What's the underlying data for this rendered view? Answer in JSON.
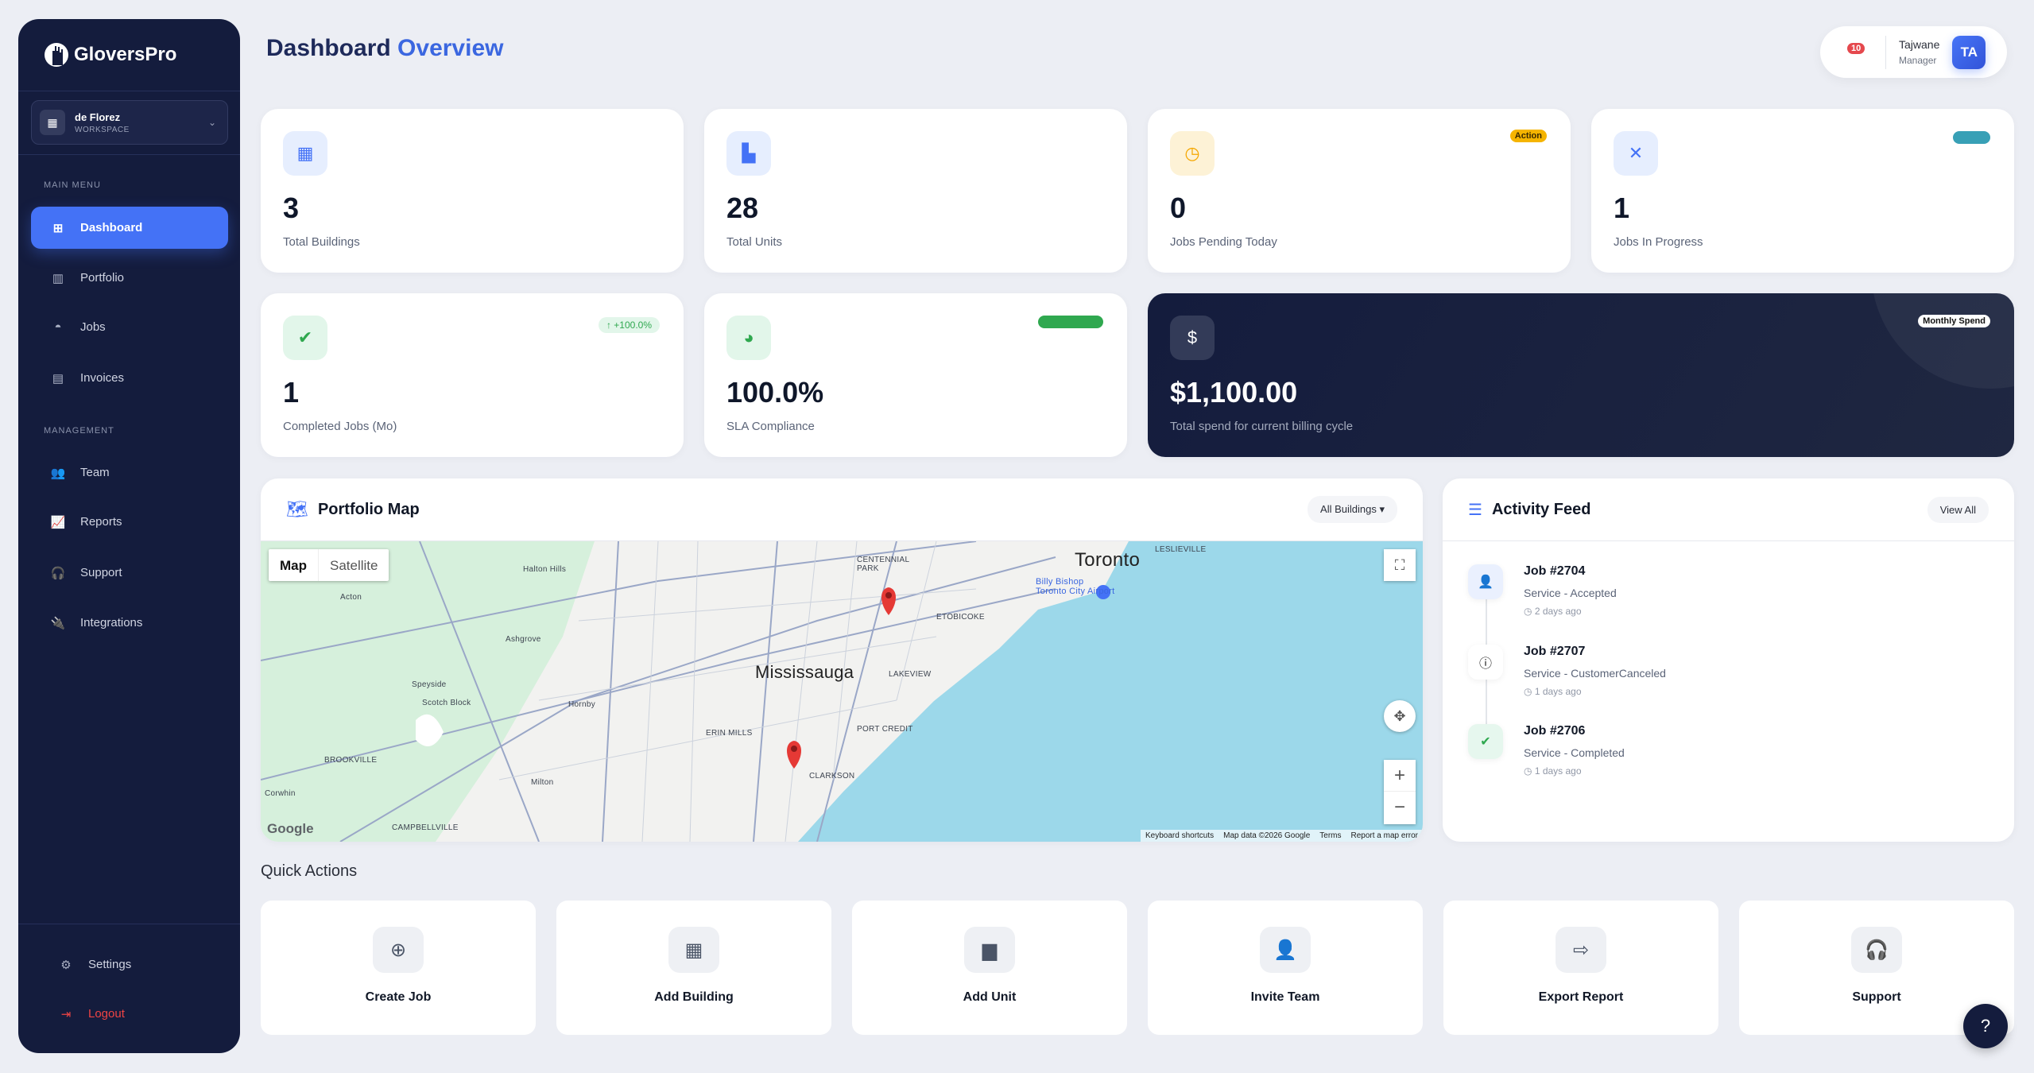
{
  "brand": {
    "name": "GloversPro"
  },
  "workspace": {
    "name": "de Florez",
    "label": "WORKSPACE"
  },
  "sidebar": {
    "main_menu_label": "MAIN MENU",
    "main_items": [
      {
        "label": "Dashboard",
        "icon": "grid-icon",
        "active": true
      },
      {
        "label": "Portfolio",
        "icon": "building-icon"
      },
      {
        "label": "Jobs",
        "icon": "hard-hat-icon"
      },
      {
        "label": "Invoices",
        "icon": "invoice-icon"
      }
    ],
    "management_label": "MANAGEMENT",
    "management_items": [
      {
        "label": "Team",
        "icon": "users-icon"
      },
      {
        "label": "Reports",
        "icon": "chart-line-icon"
      },
      {
        "label": "Support",
        "icon": "headset-icon"
      },
      {
        "label": "Integrations",
        "icon": "plug-icon"
      }
    ],
    "settings": "Settings",
    "logout": "Logout"
  },
  "header": {
    "title_part1": "Dashboard",
    "title_part2": "Overview",
    "notifications": "10",
    "user_name": "Tajwane",
    "user_role": "Manager",
    "avatar_initials": "TA"
  },
  "stats": [
    {
      "value": "3",
      "label": "Total Buildings",
      "icon": "building-icon"
    },
    {
      "value": "28",
      "label": "Total Units",
      "icon": "door-icon"
    },
    {
      "value": "0",
      "label": "Jobs Pending Today",
      "icon": "clock-icon",
      "badge": "Action"
    },
    {
      "value": "1",
      "label": "Jobs In Progress",
      "icon": "tools-icon"
    },
    {
      "value": "1",
      "label": "Completed Jobs (Mo)",
      "icon": "check-circle-icon",
      "badge": "↑ +100.0%"
    },
    {
      "value": "100.0%",
      "label": "SLA Compliance",
      "icon": "pie-chart-icon"
    },
    {
      "value": "$1,100.00",
      "label": "Total spend for current billing cycle",
      "icon": "dollar-icon",
      "badge": "Monthly Spend"
    }
  ],
  "colors": {
    "accent": "#4472f6",
    "sidebar": "#141c3d",
    "in_progress": "#38a0b6",
    "sla_bar": "#2fa84f",
    "action": "#f5b400"
  },
  "map": {
    "title": "Portfolio Map",
    "filter": "All Buildings",
    "type_map": "Map",
    "type_satellite": "Satellite",
    "labels": {
      "toronto": "Toronto",
      "mississauga": "Mississauga",
      "etobicoke": "ETOBICOKE",
      "milton": "Milton",
      "acton": "Acton",
      "halton_hills": "Halton Hills",
      "brampton": "Scotch Block",
      "oakville": "ERIN MILLS",
      "port_credit": "PORT CREDIT",
      "billy_bishop": "Billy Bishop Toronto City Airport",
      "leslieville": "LESLIEVILLE",
      "centennial": "CENTENNIAL PARK",
      "lakeview": "LAKEVIEW",
      "clarkson": "CLARKSON",
      "brookville": "BROOKVILLE",
      "campbellville": "CAMPBELLVILLE",
      "ashgrove": "Ashgrove",
      "speyside": "Speyside",
      "hornby": "Hornby",
      "corwhin": "Corwhin"
    },
    "footer": [
      "Keyboard shortcuts",
      "Map data ©2026 Google",
      "Terms",
      "Report a map error"
    ],
    "google": "Google"
  },
  "activity": {
    "title": "Activity Feed",
    "view_all": "View All",
    "items": [
      {
        "job": "Job #2704",
        "service": "Service - Accepted",
        "time": "2 days ago",
        "icon": "user-check-icon"
      },
      {
        "job": "Job #2707",
        "service": "Service - CustomerCanceled",
        "time": "1 days ago",
        "icon": "info-icon"
      },
      {
        "job": "Job #2706",
        "service": "Service - Completed",
        "time": "1 days ago",
        "icon": "check-circle-icon"
      }
    ]
  },
  "quick_actions": {
    "title": "Quick Actions",
    "items": [
      "Create Job",
      "Add Building",
      "Add Unit",
      "Invite Team",
      "Export Report",
      "Support"
    ]
  },
  "help": "?"
}
